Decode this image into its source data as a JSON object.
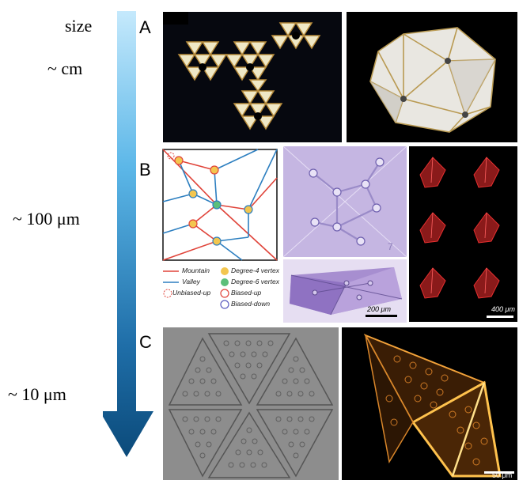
{
  "scale_axis": {
    "title": "size",
    "levels": [
      "~  cm",
      "~  100 μm",
      "~  10 μm"
    ]
  },
  "panels": [
    {
      "letter": "A"
    },
    {
      "letter": "B"
    },
    {
      "letter": "C"
    }
  ],
  "legend": {
    "mountain": "Mountain",
    "valley": "Valley",
    "unbiased_up": "Unbiased-up",
    "degree4": "Degree-4 vertex",
    "degree6": "Degree-6 vertex",
    "biased_up": "Biased-up",
    "biased_down": "Biased-down"
  },
  "scale_bars": {
    "b_mid": "200 μm",
    "b_right": "400 μm",
    "c_right": "50 μm",
    "b_mid_number": "7"
  },
  "colors": {
    "arrow_top": "#bfe6fb",
    "arrow_bottom": "#0d4f80",
    "mountain": "#e0443a",
    "valley": "#2d7fc0"
  }
}
